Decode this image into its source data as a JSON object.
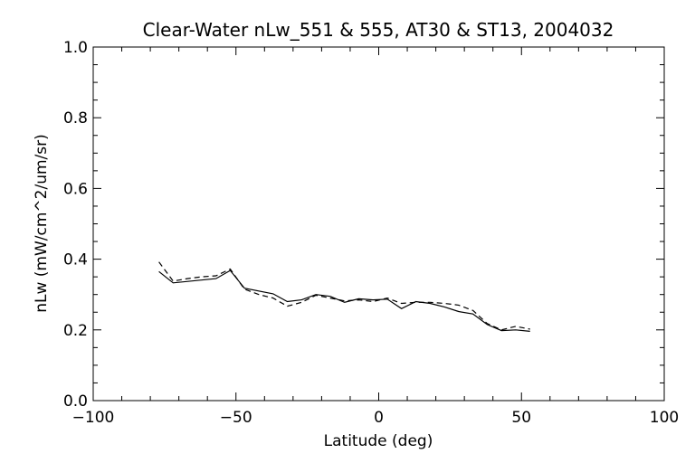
{
  "chart_data": {
    "type": "line",
    "title": "Clear-Water nLw_551 & 555, AT30 & ST13, 2004032",
    "xlabel": "Latitude (deg)",
    "ylabel": "nLw (mW/cm^2/um/sr)",
    "xlim": [
      -100,
      100
    ],
    "ylim": [
      0.0,
      1.0
    ],
    "x_ticks": [
      -100,
      -50,
      0,
      50,
      100
    ],
    "x_tick_labels": [
      "−100",
      "−50",
      "0",
      "50",
      "100"
    ],
    "y_ticks": [
      0.0,
      0.2,
      0.4,
      0.6,
      0.8,
      1.0
    ],
    "y_tick_labels": [
      "0.0",
      "0.2",
      "0.4",
      "0.6",
      "0.8",
      "1.0"
    ],
    "grid": false,
    "legend": "none",
    "series": [
      {
        "style": "solid",
        "color": "#000000",
        "x": [
          -77,
          -72,
          -57,
          -52,
          -47,
          -37,
          -32,
          -27,
          -22,
          -17,
          -12,
          -7,
          -2,
          3,
          8,
          13,
          18,
          23,
          28,
          33,
          38,
          43,
          48,
          53
        ],
        "y": [
          0.365,
          0.333,
          0.345,
          0.368,
          0.318,
          0.302,
          0.28,
          0.285,
          0.3,
          0.295,
          0.278,
          0.288,
          0.285,
          0.287,
          0.26,
          0.28,
          0.275,
          0.265,
          0.252,
          0.245,
          0.215,
          0.198,
          0.2,
          0.196
        ]
      },
      {
        "style": "dashed",
        "color": "#000000",
        "x": [
          -77,
          -72,
          -67,
          -62,
          -57,
          -52,
          -47,
          -42,
          -37,
          -32,
          -27,
          -22,
          -17,
          -12,
          -7,
          -2,
          3,
          8,
          13,
          18,
          23,
          28,
          33,
          38,
          43,
          48,
          53
        ],
        "y": [
          0.392,
          0.338,
          0.345,
          0.35,
          0.353,
          0.372,
          0.315,
          0.3,
          0.29,
          0.267,
          0.278,
          0.298,
          0.29,
          0.282,
          0.285,
          0.28,
          0.29,
          0.275,
          0.278,
          0.278,
          0.275,
          0.27,
          0.255,
          0.218,
          0.2,
          0.21,
          0.202
        ]
      }
    ]
  }
}
